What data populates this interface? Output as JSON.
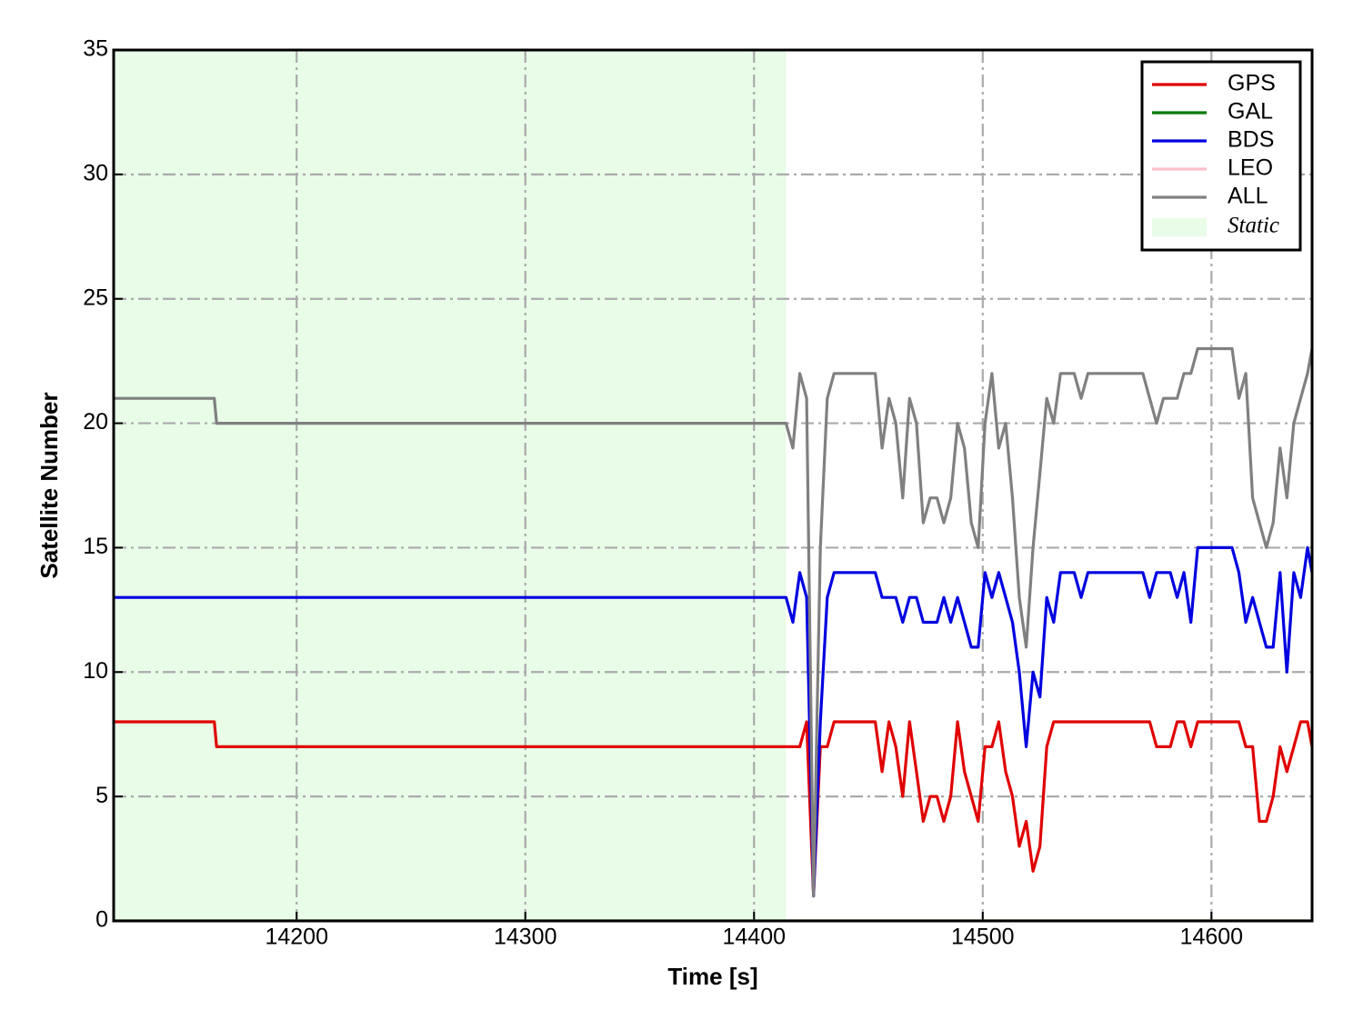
{
  "chart_data": {
    "type": "line",
    "xlabel": "Time [s]",
    "ylabel": "Satellite Number",
    "x": [
      14120,
      14164,
      14165,
      14414,
      14417,
      14420,
      14423,
      14426,
      14429,
      14432,
      14435,
      14438,
      14441,
      14444,
      14447,
      14450,
      14453,
      14456,
      14459,
      14462,
      14465,
      14468,
      14471,
      14474,
      14477,
      14480,
      14483,
      14486,
      14489,
      14492,
      14495,
      14498,
      14501,
      14504,
      14507,
      14510,
      14513,
      14516,
      14519,
      14522,
      14525,
      14528,
      14531,
      14534,
      14537,
      14540,
      14543,
      14546,
      14549,
      14552,
      14555,
      14558,
      14561,
      14564,
      14567,
      14570,
      14573,
      14576,
      14579,
      14582,
      14585,
      14588,
      14591,
      14594,
      14597,
      14600,
      14603,
      14606,
      14609,
      14612,
      14615,
      14618,
      14621,
      14624,
      14627,
      14630,
      14633,
      14636,
      14639,
      14642,
      14644
    ],
    "series": [
      {
        "name": "GPS",
        "color": "#e00000",
        "values": [
          8,
          8,
          7,
          7,
          7,
          7,
          8,
          1,
          7,
          7,
          8,
          8,
          8,
          8,
          8,
          8,
          8,
          6,
          8,
          7,
          5,
          8,
          6,
          4,
          5,
          5,
          4,
          5,
          8,
          6,
          5,
          4,
          7,
          7,
          8,
          6,
          5,
          3,
          4,
          2,
          3,
          7,
          8,
          8,
          8,
          8,
          8,
          8,
          8,
          8,
          8,
          8,
          8,
          8,
          8,
          8,
          8,
          7,
          7,
          7,
          8,
          8,
          7,
          8,
          8,
          8,
          8,
          8,
          8,
          8,
          7,
          7,
          4,
          4,
          5,
          7,
          6,
          7,
          8,
          8,
          7
        ]
      },
      {
        "name": "GAL",
        "color": "#007a00",
        "values": [
          0,
          0,
          0,
          0,
          0,
          0,
          0,
          0,
          0,
          0,
          0,
          0,
          0,
          0,
          0,
          0,
          0,
          0,
          0,
          0,
          0,
          0,
          0,
          0,
          0,
          0,
          0,
          0,
          0,
          0,
          0,
          0,
          0,
          0,
          0,
          0,
          0,
          0,
          0,
          0,
          0,
          0,
          0,
          0,
          0,
          0,
          0,
          0,
          0,
          0,
          0,
          0,
          0,
          0,
          0,
          0,
          0,
          0,
          0,
          0,
          0,
          0,
          0,
          0,
          0,
          0,
          0,
          0,
          0,
          0,
          0,
          0,
          0,
          0,
          0,
          0,
          0,
          0,
          0,
          0,
          0
        ]
      },
      {
        "name": "BDS",
        "color": "#0000e0",
        "values": [
          13,
          13,
          13,
          13,
          12,
          14,
          13,
          1,
          8,
          13,
          14,
          14,
          14,
          14,
          14,
          14,
          14,
          13,
          13,
          13,
          12,
          13,
          13,
          12,
          12,
          12,
          13,
          12,
          13,
          12,
          11,
          11,
          14,
          13,
          14,
          13,
          12,
          10,
          7,
          10,
          9,
          13,
          12,
          14,
          14,
          14,
          13,
          14,
          14,
          14,
          14,
          14,
          14,
          14,
          14,
          14,
          13,
          14,
          14,
          14,
          13,
          14,
          12,
          15,
          15,
          15,
          15,
          15,
          15,
          14,
          12,
          13,
          12,
          11,
          11,
          14,
          10,
          14,
          13,
          15,
          14
        ]
      },
      {
        "name": "LEO",
        "color": "#ffc0cb",
        "values": [
          0,
          0,
          0,
          0,
          0,
          0,
          0,
          0,
          0,
          0,
          0,
          0,
          0,
          0,
          0,
          0,
          0,
          0,
          0,
          0,
          0,
          0,
          0,
          0,
          0,
          0,
          0,
          0,
          0,
          0,
          0,
          0,
          0,
          0,
          0,
          0,
          0,
          0,
          0,
          0,
          0,
          0,
          0,
          0,
          0,
          0,
          0,
          0,
          0,
          0,
          0,
          0,
          0,
          0,
          0,
          0,
          0,
          0,
          0,
          0,
          0,
          0,
          0,
          0,
          0,
          0,
          0,
          0,
          0,
          0,
          0,
          0,
          0,
          0,
          0,
          0,
          0,
          0,
          0,
          0,
          0
        ]
      },
      {
        "name": "ALL",
        "color": "#808080",
        "values": [
          21,
          21,
          20,
          20,
          19,
          22,
          21,
          1,
          15,
          21,
          22,
          22,
          22,
          22,
          22,
          22,
          22,
          19,
          21,
          20,
          17,
          21,
          20,
          16,
          17,
          17,
          16,
          17,
          20,
          19,
          16,
          15,
          20,
          22,
          19,
          20,
          17,
          13,
          11,
          15,
          18,
          21,
          20,
          22,
          22,
          22,
          21,
          22,
          22,
          22,
          22,
          22,
          22,
          22,
          22,
          22,
          21,
          20,
          21,
          21,
          21,
          22,
          22,
          23,
          23,
          23,
          23,
          23,
          23,
          21,
          22,
          17,
          16,
          15,
          16,
          19,
          17,
          20,
          21,
          22,
          23
        ]
      }
    ],
    "shaded": {
      "label": "Static",
      "x": [
        14120,
        14414
      ],
      "color": "#e8fce8"
    },
    "xlim": [
      14120,
      14644
    ],
    "ylim": [
      0,
      35
    ],
    "xticks": [
      14200,
      14300,
      14400,
      14500,
      14600
    ],
    "yticks": [
      0,
      5,
      10,
      15,
      20,
      25,
      30,
      35
    ],
    "grid": true,
    "legend": "upper right"
  }
}
